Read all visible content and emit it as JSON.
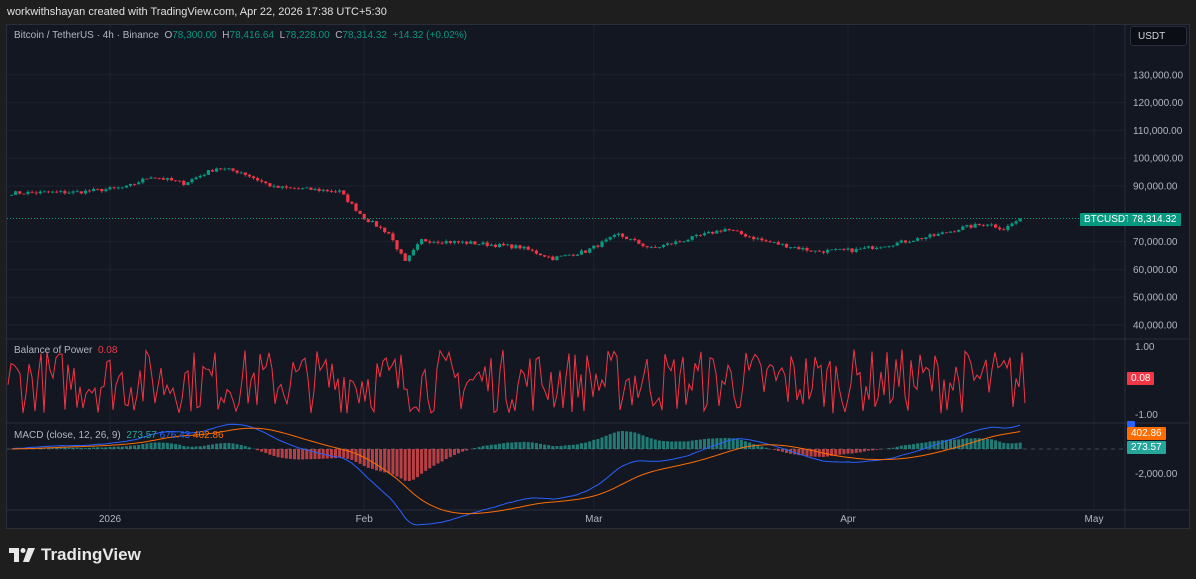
{
  "credit": "workwithshayan created with TradingView.com, Apr 22, 2026 17:38 UTC+5:30",
  "legend": {
    "symbol": "Bitcoin / TetherUS · 4h · Binance",
    "o_label": "O",
    "o": "78,300.00",
    "h_label": "H",
    "h": "78,416.64",
    "l_label": "L",
    "l": "78,228.00",
    "c_label": "C",
    "c": "78,314.32",
    "change": "+14.32 (+0.02%)"
  },
  "currency_button": "USDT",
  "price_tag": {
    "symbol": "BTCUSDT",
    "value": "78,314.32",
    "color": "#089981"
  },
  "bop": {
    "title": "Balance of Power",
    "value": "0.08",
    "ticks": [
      "1.00",
      "-1.00"
    ],
    "color": "#f23645"
  },
  "macd": {
    "title": "MACD (close, 12, 26, 9)",
    "hist": "273.57",
    "macd": "676.43",
    "signal": "402.86",
    "tick": "-2,000.00",
    "colors": {
      "macd": "#2962ff",
      "signal": "#ff6d00",
      "hist": "#26a69a"
    }
  },
  "logo_text": "TradingView",
  "chart_data": {
    "type": "candlestick",
    "y_ticks": [
      "130,000.00",
      "120,000.00",
      "110,000.00",
      "100,000.00",
      "90,000.00",
      "70,000.00",
      "60,000.00",
      "50,000.00",
      "40,000.00"
    ],
    "ylim": [
      40000,
      130000
    ],
    "x_ticks": [
      {
        "label": "2026",
        "date": "2026-01-01"
      },
      {
        "label": "Feb",
        "date": "2026-02-01"
      },
      {
        "label": "Mar",
        "date": "2026-03-01"
      },
      {
        "label": "Apr",
        "date": "2026-04-01"
      },
      {
        "label": "May",
        "date": "2026-05-01"
      }
    ],
    "approx_close": [
      [
        "2025-12-20",
        87500
      ],
      [
        "2025-12-28",
        87800
      ],
      [
        "2026-01-03",
        89500
      ],
      [
        "2026-01-06",
        93500
      ],
      [
        "2026-01-10",
        91000
      ],
      [
        "2026-01-14",
        96500
      ],
      [
        "2026-01-17",
        95000
      ],
      [
        "2026-01-21",
        89500
      ],
      [
        "2026-01-27",
        88500
      ],
      [
        "2026-01-29",
        88000
      ],
      [
        "2026-02-01",
        78500
      ],
      [
        "2026-02-04",
        73000
      ],
      [
        "2026-02-06",
        62500
      ],
      [
        "2026-02-08",
        70500
      ],
      [
        "2026-02-14",
        69500
      ],
      [
        "2026-02-20",
        68000
      ],
      [
        "2026-02-24",
        64000
      ],
      [
        "2026-02-28",
        66500
      ],
      [
        "2026-03-04",
        72500
      ],
      [
        "2026-03-08",
        67500
      ],
      [
        "2026-03-12",
        70500
      ],
      [
        "2026-03-17",
        74500
      ],
      [
        "2026-03-22",
        70000
      ],
      [
        "2026-03-28",
        66500
      ],
      [
        "2026-04-02",
        67000
      ],
      [
        "2026-04-07",
        69500
      ],
      [
        "2026-04-12",
        72500
      ],
      [
        "2026-04-15",
        75000
      ],
      [
        "2026-04-18",
        76500
      ],
      [
        "2026-04-20",
        74500
      ],
      [
        "2026-04-22",
        78314
      ]
    ],
    "last_price": 78314.32
  }
}
